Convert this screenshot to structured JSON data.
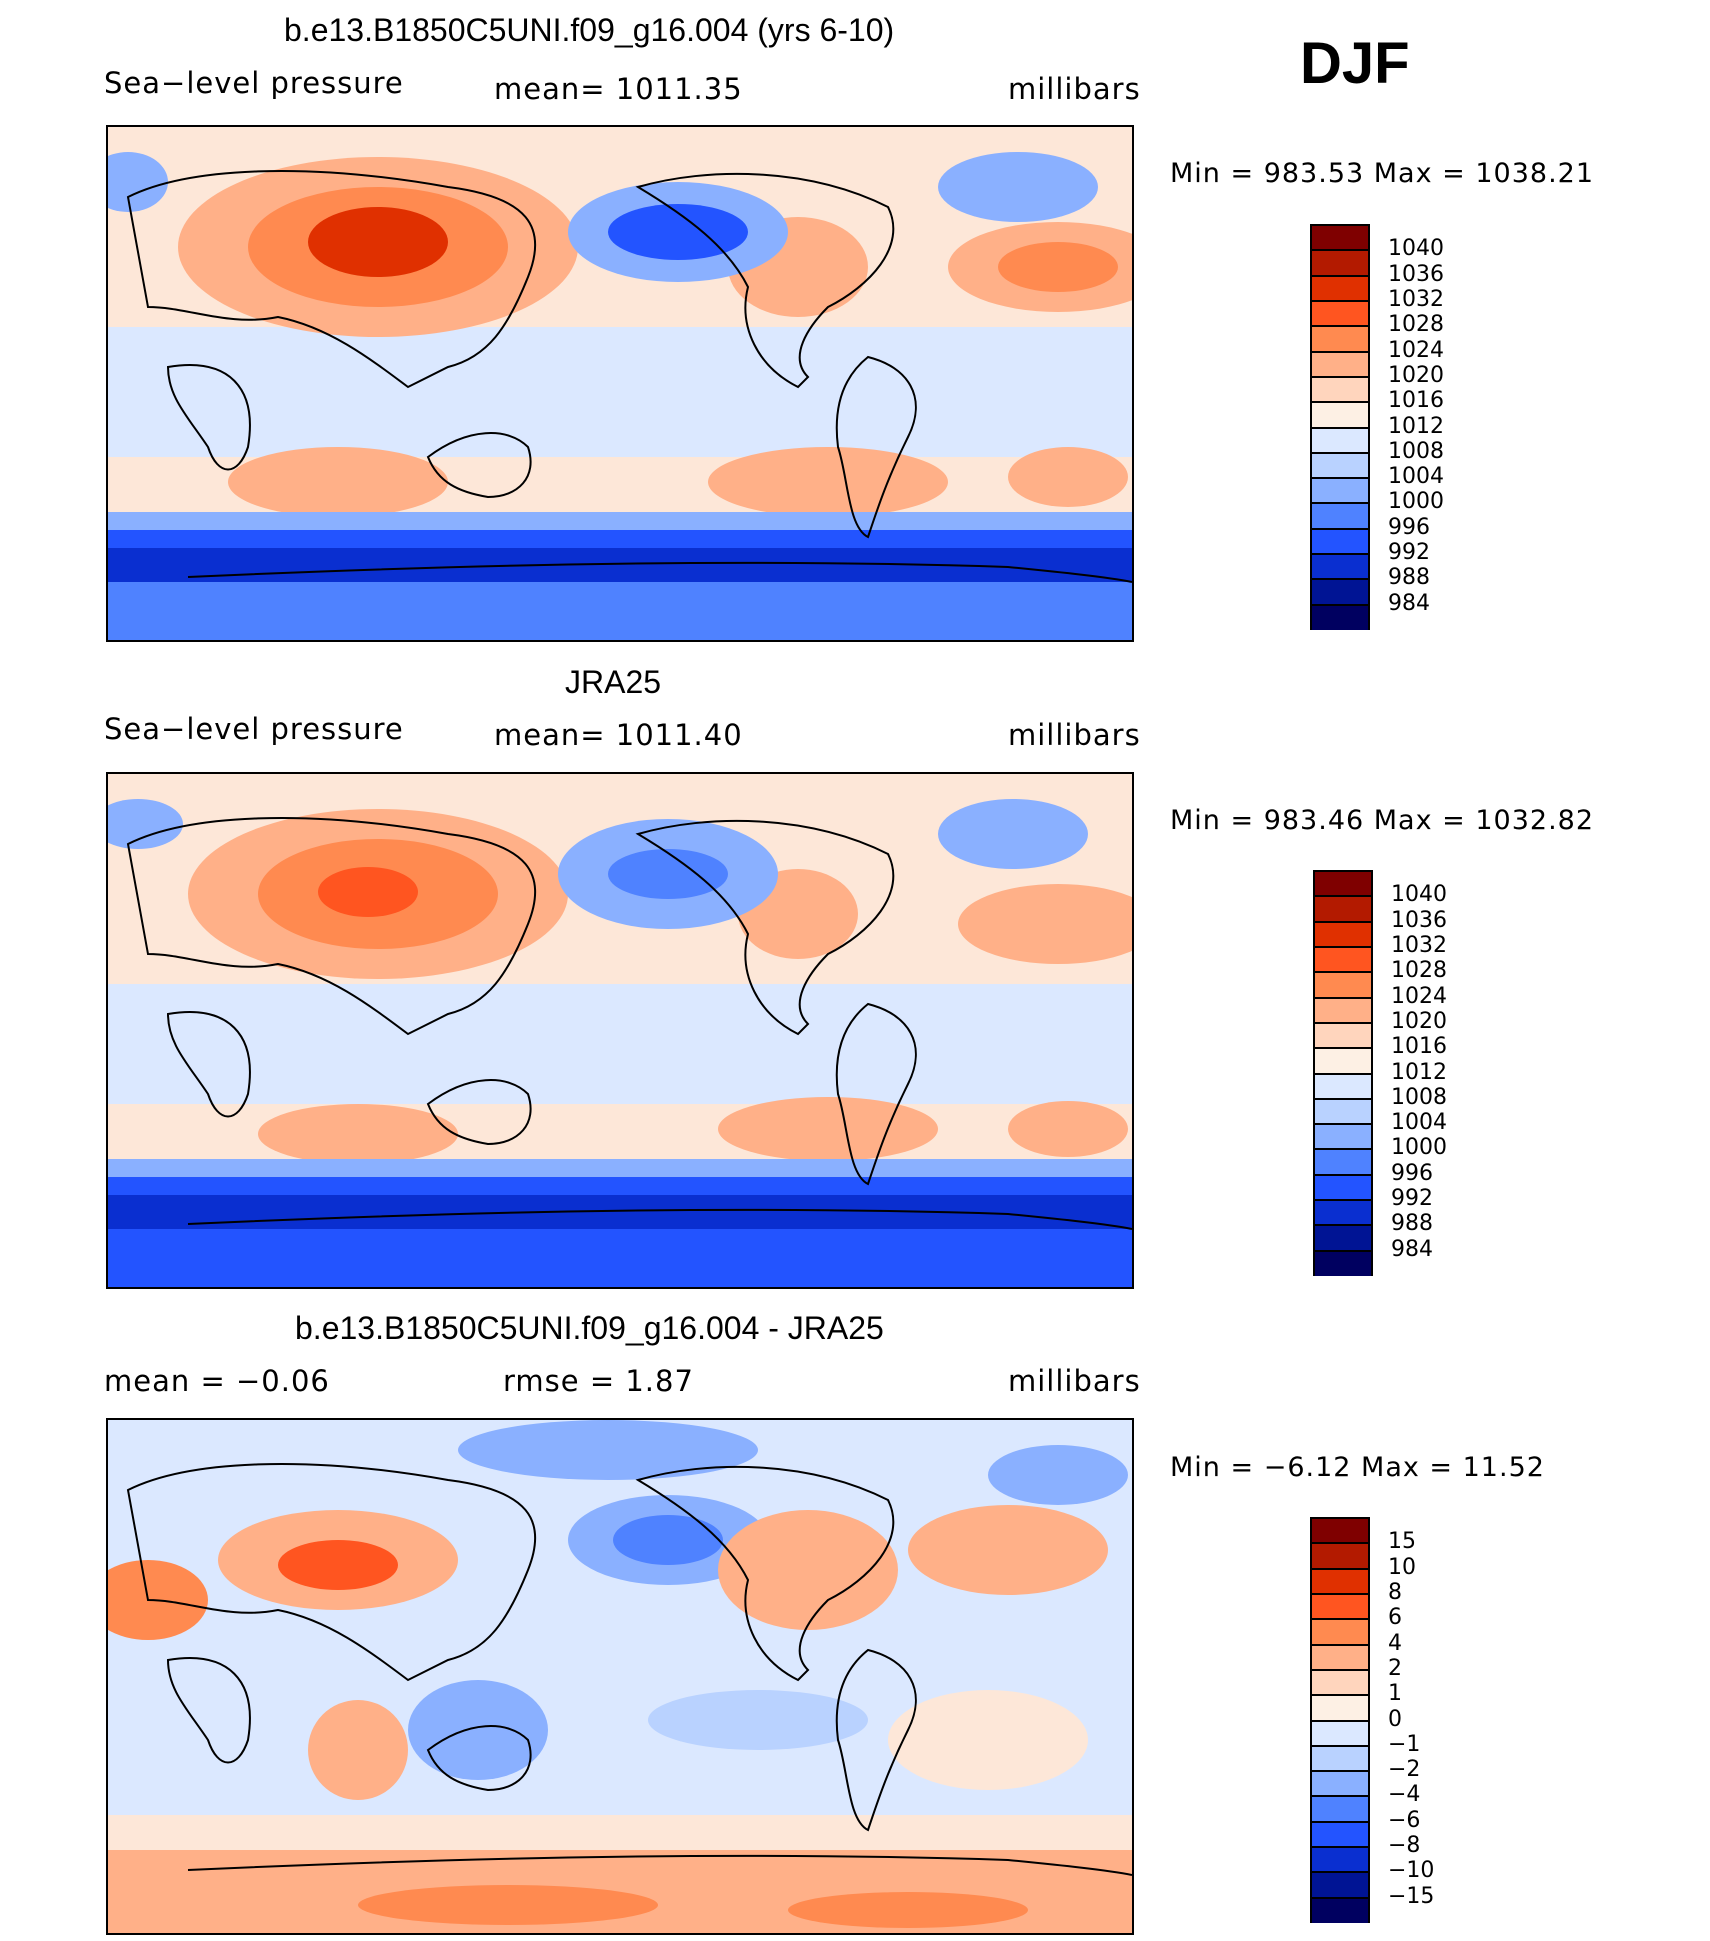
{
  "season": "DJF",
  "panels": [
    {
      "title": "b.e13.B1850C5UNI.f09_g16.004 (yrs 6-10)",
      "left_label": "Sea−level pressure",
      "center_label": "mean=  1011.35",
      "right_label": "millibars",
      "minmax": "Min  =  983.53  Max  =  1038.21",
      "colorbar": {
        "labels": [
          "1040",
          "1036",
          "1032",
          "1028",
          "1024",
          "1020",
          "1016",
          "1012",
          "1008",
          "1004",
          "1000",
          "996",
          "992",
          "988",
          "984"
        ],
        "colors": [
          "#7f0000",
          "#b31a00",
          "#e03000",
          "#ff5520",
          "#ff8a50",
          "#ffb088",
          "#ffd5bd",
          "#fdf0e4",
          "#dbe8ff",
          "#b9d2ff",
          "#8ab0ff",
          "#4f82ff",
          "#2354ff",
          "#0a2fd0",
          "#001494",
          "#000060"
        ]
      }
    },
    {
      "title": "JRA25",
      "left_label": "Sea−level pressure",
      "center_label": "mean=  1011.40",
      "right_label": "millibars",
      "minmax": "Min  =  983.46  Max  =  1032.82",
      "colorbar": {
        "labels": [
          "1040",
          "1036",
          "1032",
          "1028",
          "1024",
          "1020",
          "1016",
          "1012",
          "1008",
          "1004",
          "1000",
          "996",
          "992",
          "988",
          "984"
        ],
        "colors": [
          "#7f0000",
          "#b31a00",
          "#e03000",
          "#ff5520",
          "#ff8a50",
          "#ffb088",
          "#ffd5bd",
          "#fdf0e4",
          "#dbe8ff",
          "#b9d2ff",
          "#8ab0ff",
          "#4f82ff",
          "#2354ff",
          "#0a2fd0",
          "#001494",
          "#000060"
        ]
      }
    },
    {
      "title": "b.e13.B1850C5UNI.f09_g16.004 - JRA25",
      "left_label": "mean  =    −0.06",
      "center_label": "rmse  =     1.87",
      "right_label": "millibars",
      "minmax": "Min  =    −6.12  Max  =    11.52",
      "colorbar": {
        "labels": [
          "15",
          "10",
          "8",
          "6",
          "4",
          "2",
          "1",
          "0",
          "−1",
          "−2",
          "−4",
          "−6",
          "−8",
          "−10",
          "−15"
        ],
        "colors": [
          "#7f0000",
          "#b31a00",
          "#e03000",
          "#ff5520",
          "#ff8a50",
          "#ffb088",
          "#ffd5bd",
          "#fdf0e4",
          "#dbe8ff",
          "#b9d2ff",
          "#8ab0ff",
          "#4f82ff",
          "#2354ff",
          "#0a2fd0",
          "#001494",
          "#000060"
        ]
      }
    }
  ]
}
